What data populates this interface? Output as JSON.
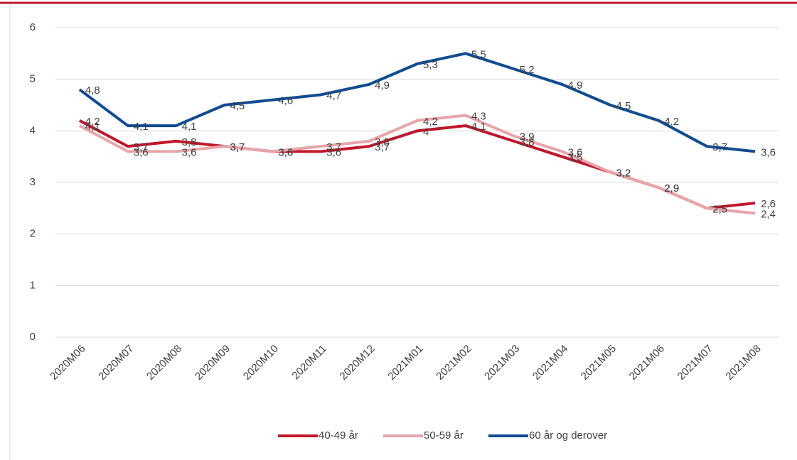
{
  "chart_data": {
    "type": "line",
    "categories": [
      "2020M06",
      "2020M07",
      "2020M08",
      "2020M09",
      "2020M10",
      "2020M11",
      "2020M12",
      "2021M01",
      "2021M02",
      "2021M03",
      "2021M04",
      "2021M05",
      "2021M06",
      "2021M07",
      "2021M08"
    ],
    "series": [
      {
        "name": "40-49 år",
        "color": "#c0172b",
        "values": [
          4.2,
          3.7,
          3.8,
          3.7,
          3.6,
          3.6,
          3.7,
          4,
          4.1,
          3.8,
          3.5,
          3.2,
          2.9,
          2.5,
          2.6
        ],
        "value_labels": [
          "4,2",
          "3,7",
          "3,8",
          "3,7",
          "3,6",
          "3,6",
          "3,7",
          "4",
          "4,1",
          "3,8",
          "3,5",
          "3,2",
          "2,9",
          "2,5",
          "2,6"
        ]
      },
      {
        "name": "50-59 år",
        "color": "#e8a5a9",
        "values": [
          4.1,
          3.6,
          3.6,
          3.7,
          3.6,
          3.7,
          3.8,
          4.2,
          4.3,
          3.9,
          3.6,
          3.2,
          2.9,
          2.5,
          2.4
        ],
        "value_labels": [
          "4,1",
          "3,6",
          "3,6",
          "3,7",
          "3,6",
          "3,7",
          "3,8",
          "4,2",
          "4,3",
          "3,9",
          "3,6",
          "3,2",
          "2,9",
          "2,5",
          "2,4"
        ]
      },
      {
        "name": "60 år og derover",
        "color": "#0f4c92",
        "values": [
          4.8,
          4.1,
          4.1,
          4.5,
          4.6,
          4.7,
          4.9,
          5.3,
          5.5,
          5.2,
          4.9,
          4.5,
          4.2,
          3.7,
          3.6
        ],
        "value_labels": [
          "4,8",
          "4,1",
          "4,1",
          "4,5",
          "4,6",
          "4,7",
          "4,9",
          "5,3",
          "5,5",
          "5,2",
          "4,9",
          "4,5",
          "4,2",
          "3,7",
          "3,6"
        ]
      }
    ],
    "ylim": [
      0,
      6
    ],
    "yticks": [
      0,
      1,
      2,
      3,
      4,
      5,
      6
    ],
    "grid": true,
    "legend": "bottom"
  }
}
